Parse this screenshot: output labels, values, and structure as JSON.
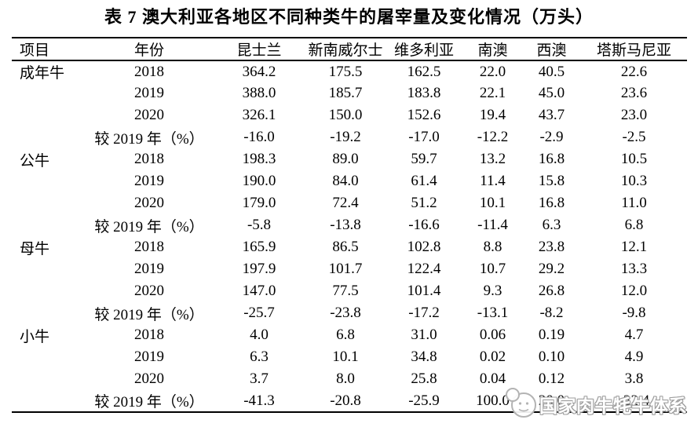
{
  "title": "表 7 澳大利亚各地区不同种类牛的屠宰量及变化情况（万头）",
  "table": {
    "columns": [
      "项目",
      "年份",
      "昆士兰",
      "新南威尔士",
      "维多利亚",
      "南澳",
      "西澳",
      "塔斯马尼亚"
    ],
    "groups": [
      {
        "item": "成年牛",
        "rows": [
          {
            "label": "2018",
            "values": [
              "364.2",
              "175.5",
              "162.5",
              "22.0",
              "40.5",
              "22.6"
            ]
          },
          {
            "label": "2019",
            "values": [
              "388.0",
              "185.7",
              "183.8",
              "22.1",
              "45.0",
              "23.6"
            ]
          },
          {
            "label": "2020",
            "values": [
              "326.1",
              "150.0",
              "152.6",
              "19.4",
              "43.7",
              "23.0"
            ]
          },
          {
            "label": "较 2019 年（%）",
            "values": [
              "-16.0",
              "-19.2",
              "-17.0",
              "-12.2",
              "-2.9",
              "-2.5"
            ]
          }
        ]
      },
      {
        "item": "公牛",
        "rows": [
          {
            "label": "2018",
            "values": [
              "198.3",
              "89.0",
              "59.7",
              "13.2",
              "16.8",
              "10.5"
            ]
          },
          {
            "label": "2019",
            "values": [
              "190.0",
              "84.0",
              "61.4",
              "11.4",
              "15.8",
              "10.3"
            ]
          },
          {
            "label": "2020",
            "values": [
              "179.0",
              "72.4",
              "51.2",
              "10.1",
              "16.8",
              "11.0"
            ]
          },
          {
            "label": "较 2019 年（%）",
            "values": [
              "-5.8",
              "-13.8",
              "-16.6",
              "-11.4",
              "6.3",
              "6.8"
            ]
          }
        ]
      },
      {
        "item": "母牛",
        "rows": [
          {
            "label": "2018",
            "values": [
              "165.9",
              "86.5",
              "102.8",
              "8.8",
              "23.8",
              "12.1"
            ]
          },
          {
            "label": "2019",
            "values": [
              "197.9",
              "101.7",
              "122.4",
              "10.7",
              "29.2",
              "13.3"
            ]
          },
          {
            "label": "2020",
            "values": [
              "147.0",
              "77.5",
              "101.4",
              "9.3",
              "26.8",
              "12.0"
            ]
          },
          {
            "label": "较 2019 年（%）",
            "values": [
              "-25.7",
              "-23.8",
              "-17.2",
              "-13.1",
              "-8.2",
              "-9.8"
            ]
          }
        ]
      },
      {
        "item": "小牛",
        "rows": [
          {
            "label": "2018",
            "values": [
              "4.0",
              "6.8",
              "31.0",
              "0.06",
              "0.19",
              "4.7"
            ]
          },
          {
            "label": "2019",
            "values": [
              "6.3",
              "10.1",
              "34.8",
              "0.02",
              "0.10",
              "4.9"
            ]
          },
          {
            "label": "2020",
            "values": [
              "3.7",
              "8.0",
              "25.8",
              "0.04",
              "0.12",
              "3.8"
            ]
          },
          {
            "label": "较 2019 年（%）",
            "values": [
              "-41.3",
              "-20.8",
              "-25.9",
              "100.0",
              "20.0",
              "-22.4"
            ]
          }
        ]
      }
    ]
  },
  "watermark": {
    "text": "国家肉牛牦牛体系",
    "logo": "cattle-system-logo",
    "outline_color": "#9e9e9e"
  }
}
